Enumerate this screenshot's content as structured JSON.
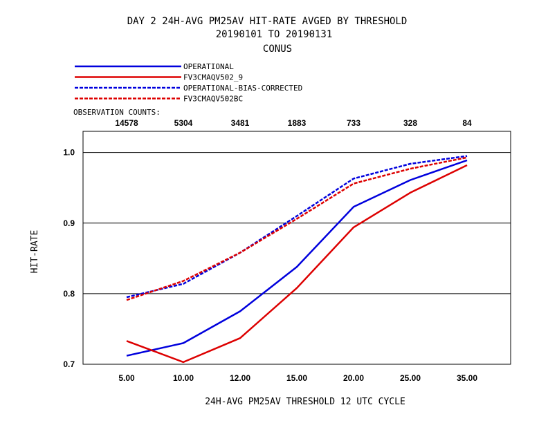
{
  "title": {
    "line1": "DAY 2   24H-AVG PM25AV HIT-RATE   AVGED BY THRESHOLD",
    "line2": "20190101 TO 20190131",
    "line3": "CONUS"
  },
  "legend": {
    "items": [
      {
        "label": "OPERATIONAL",
        "color": "#0000dd",
        "dashed": false
      },
      {
        "label": "FV3CMAQV502_9",
        "color": "#dd0000",
        "dashed": false
      },
      {
        "label": "OPERATIONAL-BIAS-CORRECTED",
        "color": "#0000dd",
        "dashed": true
      },
      {
        "label": "FV3CMAQV502BC",
        "color": "#dd0000",
        "dashed": true
      }
    ]
  },
  "observation_counts": {
    "label": "OBSERVATION COUNTS:",
    "values": [
      "14578",
      "5304",
      "3481",
      "1883",
      "733",
      "328",
      "84"
    ]
  },
  "chart_data": {
    "type": "line",
    "categories": [
      "5.00",
      "10.00",
      "12.00",
      "15.00",
      "20.00",
      "25.00",
      "35.00"
    ],
    "xlabel": "24H-AVG PM25AV THRESHOLD     12 UTC CYCLE",
    "ylabel": "HIT-RATE",
    "ylim": [
      0.7,
      1.03
    ],
    "yticks": [
      "0.7",
      "0.8",
      "0.9",
      "1.0"
    ],
    "grid": "horizontal",
    "legend_position": "top-left",
    "series": [
      {
        "name": "OPERATIONAL",
        "color": "#0000dd",
        "dashed": false,
        "values": [
          0.712,
          0.73,
          0.775,
          0.838,
          0.923,
          0.961,
          0.989
        ]
      },
      {
        "name": "FV3CMAQV502_9",
        "color": "#dd0000",
        "dashed": false,
        "values": [
          0.733,
          0.703,
          0.737,
          0.808,
          0.894,
          0.943,
          0.982
        ]
      },
      {
        "name": "OPERATIONAL-BIAS-CORRECTED",
        "color": "#0000dd",
        "dashed": true,
        "values": [
          0.795,
          0.814,
          0.858,
          0.91,
          0.963,
          0.984,
          0.995
        ]
      },
      {
        "name": "FV3CMAQV502BC",
        "color": "#dd0000",
        "dashed": true,
        "values": [
          0.791,
          0.818,
          0.858,
          0.906,
          0.956,
          0.977,
          0.993
        ]
      }
    ]
  }
}
